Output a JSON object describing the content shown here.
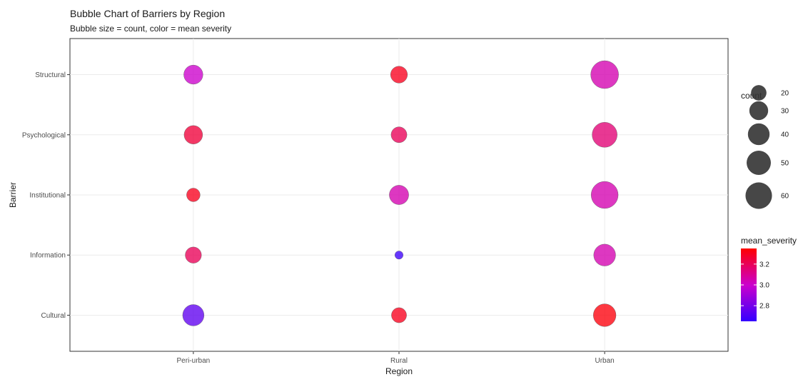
{
  "chart_data": {
    "type": "scatter",
    "title": "Bubble Chart of Barriers by Region",
    "subtitle": "Bubble size = count, color = mean severity",
    "xlabel": "Region",
    "ylabel": "Barrier",
    "x_categories": [
      "Peri-urban",
      "Rural",
      "Urban"
    ],
    "y_categories": [
      "Cultural",
      "Information",
      "Institutional",
      "Psychological",
      "Structural"
    ],
    "grid": true,
    "size_legend": {
      "title": "count",
      "values": [
        20,
        30,
        40,
        50,
        60
      ]
    },
    "color_legend": {
      "title": "mean_severity",
      "ticks": [
        2.8,
        3.0,
        3.2
      ],
      "range": [
        2.65,
        3.35
      ],
      "low_color": "#3300ff",
      "mid_color": "#cc00cc",
      "high_color": "#ff0000"
    },
    "points": [
      {
        "x": "Peri-urban",
        "y": "Structural",
        "count": 32,
        "mean_severity": 3.0
      },
      {
        "x": "Rural",
        "y": "Structural",
        "count": 25,
        "mean_severity": 3.3
      },
      {
        "x": "Urban",
        "y": "Structural",
        "count": 68,
        "mean_severity": 3.05
      },
      {
        "x": "Peri-urban",
        "y": "Psychological",
        "count": 30,
        "mean_severity": 3.25
      },
      {
        "x": "Rural",
        "y": "Psychological",
        "count": 22,
        "mean_severity": 3.2
      },
      {
        "x": "Urban",
        "y": "Psychological",
        "count": 55,
        "mean_severity": 3.15
      },
      {
        "x": "Peri-urban",
        "y": "Institutional",
        "count": 16,
        "mean_severity": 3.3
      },
      {
        "x": "Rural",
        "y": "Institutional",
        "count": 33,
        "mean_severity": 3.05
      },
      {
        "x": "Urban",
        "y": "Institutional",
        "count": 64,
        "mean_severity": 3.05
      },
      {
        "x": "Peri-urban",
        "y": "Information",
        "count": 23,
        "mean_severity": 3.2
      },
      {
        "x": "Rural",
        "y": "Information",
        "count": 6,
        "mean_severity": 2.67
      },
      {
        "x": "Urban",
        "y": "Information",
        "count": 42,
        "mean_severity": 3.05
      },
      {
        "x": "Peri-urban",
        "y": "Cultural",
        "count": 40,
        "mean_severity": 2.75
      },
      {
        "x": "Rural",
        "y": "Cultural",
        "count": 20,
        "mean_severity": 3.3
      },
      {
        "x": "Urban",
        "y": "Cultural",
        "count": 45,
        "mean_severity": 3.33
      }
    ]
  }
}
